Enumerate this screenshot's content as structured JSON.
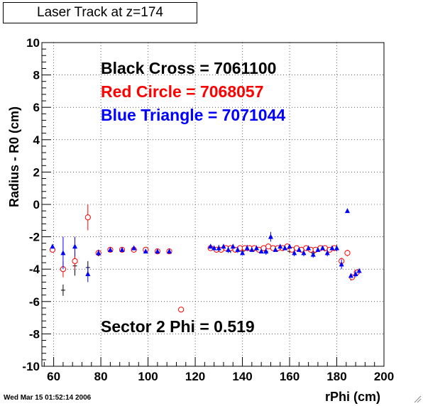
{
  "title": "Laser Track at z=174",
  "footer_date": "Wed Mar 15 01:52:14 2006",
  "chart_data": {
    "type": "scatter",
    "xlabel": "rPhi (cm)",
    "ylabel": "Radius - R0 (cm)",
    "xlim": [
      55,
      200
    ],
    "ylim": [
      -10,
      10
    ],
    "x_ticks": [
      60,
      80,
      100,
      120,
      140,
      160,
      180,
      200
    ],
    "y_ticks": [
      -10,
      -8,
      -6,
      -4,
      -2,
      0,
      2,
      4,
      6,
      8,
      10
    ],
    "grid": true,
    "annotations": [
      {
        "text": "Black Cross  = 7061100",
        "color": "#000000"
      },
      {
        "text": "Red Circle = 7068057",
        "color": "#ff0000"
      },
      {
        "text": "Blue Triangle = 7071044",
        "color": "#0000ff"
      },
      {
        "text": "Sector 2 Phi = 0.519",
        "color": "#000000"
      }
    ],
    "series": [
      {
        "name": "Black Cross",
        "color": "#000000",
        "marker": "cross",
        "points": [
          [
            59.5,
            -2.8,
            0.15
          ],
          [
            64,
            -5.3,
            0.35
          ],
          [
            69,
            -3.8,
            0.6
          ],
          [
            74.5,
            -3.9,
            0.4
          ],
          [
            79,
            -3.0,
            0.2
          ],
          [
            84,
            -2.8,
            0.1
          ],
          [
            89,
            -2.8,
            0.1
          ],
          [
            94,
            -2.8,
            0.1
          ],
          [
            99,
            -2.8,
            0.1
          ],
          [
            104,
            -2.9,
            0.1
          ],
          [
            109,
            -2.9,
            0.1
          ],
          [
            126.5,
            -2.7,
            0.1
          ],
          [
            130,
            -2.8,
            0.1
          ],
          [
            135,
            -2.8,
            0.2
          ],
          [
            140,
            -2.9,
            0.1
          ],
          [
            145,
            -2.8,
            0.1
          ],
          [
            150,
            -2.9,
            0.2
          ],
          [
            155,
            -2.8,
            0.1
          ],
          [
            160,
            -2.9,
            0.1
          ],
          [
            165,
            -2.8,
            0.1
          ],
          [
            170,
            -3.0,
            0.2
          ],
          [
            175,
            -2.8,
            0.1
          ],
          [
            180,
            -2.8,
            0.1
          ],
          [
            186,
            -4.5,
            0.2
          ],
          [
            189,
            -4.2,
            0.1
          ]
        ]
      },
      {
        "name": "Red Circle",
        "color": "#ff0000",
        "marker": "circle",
        "points": [
          [
            59.5,
            -2.8,
            0.1
          ],
          [
            64,
            -4.0,
            0.5
          ],
          [
            69,
            -3.5,
            0.5
          ],
          [
            74.5,
            -0.8,
            0.8
          ],
          [
            79,
            -3.0,
            0.1
          ],
          [
            84,
            -2.8,
            0.1
          ],
          [
            89,
            -2.8,
            0.1
          ],
          [
            94,
            -2.8,
            0.1
          ],
          [
            99,
            -2.8,
            0.1
          ],
          [
            104,
            -2.9,
            0.1
          ],
          [
            109,
            -2.9,
            0.1
          ],
          [
            114,
            -6.5,
            0.1
          ],
          [
            126.5,
            -2.7,
            0.1
          ],
          [
            129,
            -2.8,
            0.1
          ],
          [
            131,
            -2.8,
            0.1
          ],
          [
            133,
            -2.7,
            0.1
          ],
          [
            135,
            -2.7,
            0.1
          ],
          [
            137,
            -2.8,
            0.1
          ],
          [
            139,
            -2.7,
            0.1
          ],
          [
            141,
            -2.7,
            0.1
          ],
          [
            143,
            -2.7,
            0.1
          ],
          [
            145,
            -2.7,
            0.1
          ],
          [
            147,
            -2.8,
            0.1
          ],
          [
            149,
            -2.7,
            0.1
          ],
          [
            151,
            -2.6,
            0.1
          ],
          [
            153,
            -2.7,
            0.1
          ],
          [
            155,
            -2.7,
            0.1
          ],
          [
            157,
            -2.7,
            0.1
          ],
          [
            159,
            -2.6,
            0.1
          ],
          [
            161,
            -2.8,
            0.1
          ],
          [
            163,
            -2.7,
            0.1
          ],
          [
            165,
            -2.8,
            0.1
          ],
          [
            167,
            -2.7,
            0.1
          ],
          [
            169,
            -2.8,
            0.1
          ],
          [
            171,
            -2.8,
            0.1
          ],
          [
            173,
            -2.7,
            0.1
          ],
          [
            175,
            -2.7,
            0.1
          ],
          [
            177,
            -2.8,
            0.1
          ],
          [
            179,
            -2.7,
            0.1
          ],
          [
            182,
            -3.5,
            0.2
          ],
          [
            184.5,
            -3.0,
            0.2
          ],
          [
            186.5,
            -4.5,
            0.1
          ],
          [
            188.5,
            -4.2,
            0.1
          ]
        ]
      },
      {
        "name": "Blue Triangle",
        "color": "#0000ff",
        "marker": "triangle",
        "points": [
          [
            59.5,
            -2.6,
            0.1
          ],
          [
            64,
            -3.0,
            1.0
          ],
          [
            69,
            -2.6,
            0.6
          ],
          [
            74.5,
            -4.3,
            0.5
          ],
          [
            79,
            -3.0,
            0.2
          ],
          [
            84,
            -2.8,
            0.1
          ],
          [
            89,
            -2.8,
            0.1
          ],
          [
            94,
            -2.7,
            0.1
          ],
          [
            99,
            -2.9,
            0.1
          ],
          [
            104,
            -2.9,
            0.1
          ],
          [
            109,
            -2.9,
            0.1
          ],
          [
            126.5,
            -2.6,
            0.1
          ],
          [
            128,
            -2.7,
            0.1
          ],
          [
            130,
            -2.7,
            0.2
          ],
          [
            132,
            -2.6,
            0.1
          ],
          [
            134,
            -2.8,
            0.2
          ],
          [
            136,
            -2.6,
            0.1
          ],
          [
            138,
            -2.8,
            0.2
          ],
          [
            140,
            -3.0,
            0.1
          ],
          [
            142,
            -2.7,
            0.2
          ],
          [
            144,
            -2.8,
            0.1
          ],
          [
            146,
            -2.7,
            0.1
          ],
          [
            148,
            -2.9,
            0.1
          ],
          [
            150,
            -2.9,
            0.2
          ],
          [
            152,
            -2.0,
            0.3
          ],
          [
            154,
            -2.8,
            0.1
          ],
          [
            156,
            -2.6,
            0.1
          ],
          [
            158,
            -2.7,
            0.1
          ],
          [
            160,
            -2.6,
            0.1
          ],
          [
            162,
            -3.0,
            0.2
          ],
          [
            164,
            -2.8,
            0.1
          ],
          [
            166,
            -3.0,
            0.2
          ],
          [
            168,
            -2.7,
            0.1
          ],
          [
            170,
            -3.1,
            0.2
          ],
          [
            172,
            -2.8,
            0.1
          ],
          [
            174,
            -2.7,
            0.1
          ],
          [
            176,
            -3.0,
            0.2
          ],
          [
            178,
            -2.7,
            0.1
          ],
          [
            180,
            -2.7,
            0.2
          ],
          [
            182,
            -3.7,
            0.3
          ],
          [
            184.5,
            -0.4,
            0.1
          ],
          [
            186,
            -4.4,
            0.1
          ],
          [
            188,
            -4.3,
            0.2
          ],
          [
            189.5,
            -4.1,
            0.1
          ]
        ]
      }
    ]
  }
}
